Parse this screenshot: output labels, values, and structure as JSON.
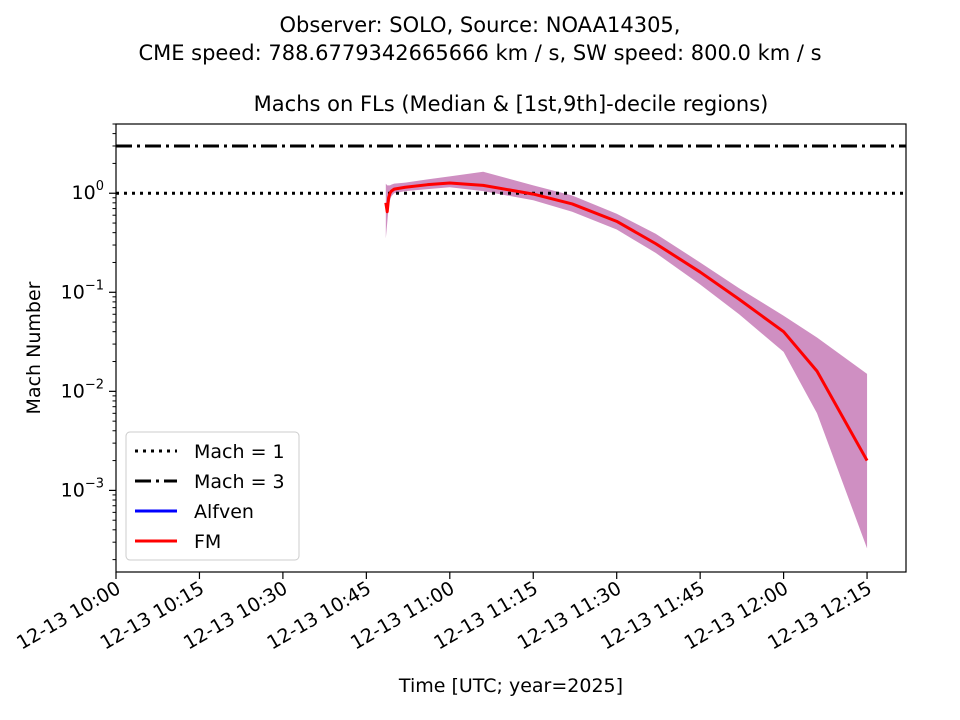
{
  "suptitle_line1": "Observer: SOLO, Source: NOAA14305,",
  "suptitle_line2": "CME speed: 788.6779342665666 km / s, SW speed: 800.0 km / s",
  "chart_data": {
    "type": "line",
    "title": "Machs on FLs (Median & [1st,9th]-decile regions)",
    "xlabel": "Time [UTC; year=2025]",
    "ylabel": "Mach Number",
    "yscale": "log",
    "xlim": [
      "2025-12-13 10:00",
      "2025-12-13 12:22"
    ],
    "ylim": [
      0.00015,
      5
    ],
    "x_ticks": [
      "12-13 10:00",
      "12-13 10:15",
      "12-13 10:30",
      "12-13 10:45",
      "12-13 11:00",
      "12-13 11:15",
      "12-13 11:30",
      "12-13 11:45",
      "12-13 12:00",
      "12-13 12:15"
    ],
    "y_ticks": [
      {
        "value": 1,
        "base": "10",
        "exp": "0"
      },
      {
        "value": 0.1,
        "base": "10",
        "exp": "−1"
      },
      {
        "value": 0.01,
        "base": "10",
        "exp": "−2"
      },
      {
        "value": 0.001,
        "base": "10",
        "exp": "−3"
      }
    ],
    "hlines": [
      {
        "name": "Mach = 1",
        "y": 1,
        "style": "dotted",
        "color": "#000000"
      },
      {
        "name": "Mach = 3",
        "y": 3,
        "style": "dashdot",
        "color": "#000000"
      }
    ],
    "series": [
      {
        "name": "Alfven",
        "color": "#0000ff",
        "x": [],
        "y": []
      },
      {
        "name": "FM",
        "color": "#ff0000",
        "band_color": "#cf8fc2",
        "x": [
          "10:48:30",
          "10:48:45",
          "10:49:00",
          "10:49:15",
          "10:49:30",
          "10:50:00",
          "10:52:00",
          "10:56:00",
          "11:00:00",
          "11:06:00",
          "11:15:00",
          "11:22:00",
          "11:30:00",
          "11:37:00",
          "11:45:00",
          "11:52:00",
          "12:00:00",
          "12:06:00",
          "12:15:00"
        ],
        "y": [
          0.8,
          0.65,
          0.9,
          1.0,
          1.05,
          1.1,
          1.15,
          1.22,
          1.27,
          1.2,
          0.98,
          0.78,
          0.52,
          0.31,
          0.16,
          0.085,
          0.04,
          0.016,
          0.002
        ],
        "lower": [
          0.35,
          0.5,
          0.72,
          0.85,
          0.93,
          1.0,
          1.05,
          1.1,
          1.15,
          1.05,
          0.85,
          0.65,
          0.43,
          0.25,
          0.12,
          0.06,
          0.025,
          0.006,
          0.00026
        ],
        "upper": [
          1.25,
          1.2,
          1.2,
          1.2,
          1.22,
          1.25,
          1.28,
          1.38,
          1.48,
          1.65,
          1.2,
          0.95,
          0.62,
          0.39,
          0.2,
          0.11,
          0.058,
          0.035,
          0.015
        ]
      }
    ],
    "legend": {
      "position": "lower-left",
      "entries": [
        "Mach = 1",
        "Mach = 3",
        "Alfven",
        "FM"
      ]
    }
  }
}
